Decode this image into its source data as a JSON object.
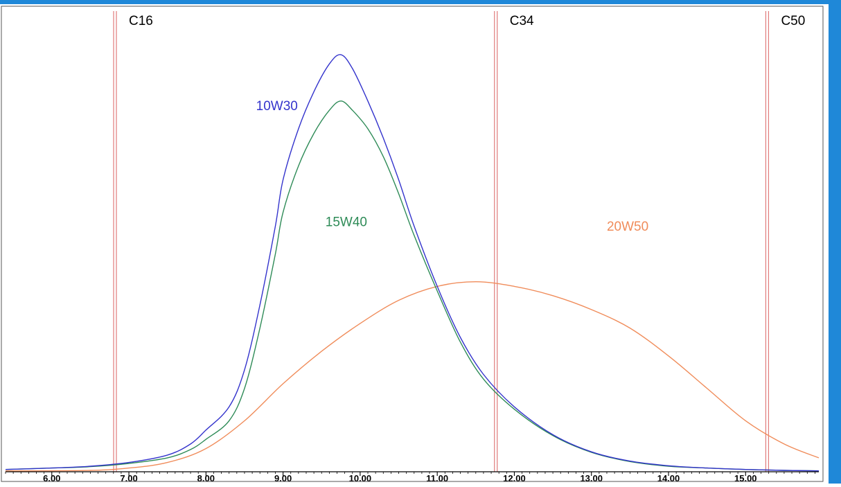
{
  "colors": {
    "frame": "#1f88d8",
    "reference": "#e07a7a",
    "series_10W30": "#3333cc",
    "series_15W40": "#2e8b57",
    "series_20W50": "#f08c5a",
    "axis_text": "#000000"
  },
  "chart_data": {
    "type": "line",
    "title": "",
    "xlabel": "",
    "ylabel": "",
    "xlim": [
      5.4,
      15.95
    ],
    "ylim": [
      0,
      100
    ],
    "x_ticks": [
      "6.00",
      "7.00",
      "8.00",
      "9.00",
      "10.00",
      "11.00",
      "12.00",
      "13.00",
      "14.00",
      "15.00"
    ],
    "grid": false,
    "legend": "none",
    "reference_markers": [
      {
        "label": "C16",
        "x": 6.82
      },
      {
        "label": "C34",
        "x": 11.76
      },
      {
        "label": "C50",
        "x": 15.28
      }
    ],
    "series": [
      {
        "name": "10W30",
        "x": [
          5.4,
          6.0,
          6.5,
          7.0,
          7.5,
          7.8,
          8.0,
          8.3,
          8.5,
          8.7,
          8.9,
          9.0,
          9.2,
          9.4,
          9.6,
          9.75,
          9.9,
          10.1,
          10.3,
          10.5,
          10.7,
          11.0,
          11.3,
          11.6,
          12.0,
          12.5,
          13.0,
          13.5,
          14.0,
          14.5,
          15.0,
          15.5,
          15.95
        ],
        "y": [
          0.5,
          0.8,
          1.2,
          2.0,
          3.6,
          6.0,
          9.0,
          14.0,
          22.0,
          36.0,
          53.0,
          63.0,
          74.0,
          82.0,
          88.0,
          90.0,
          87.0,
          80.0,
          72.0,
          63.0,
          53.0,
          40.0,
          29.0,
          21.0,
          14.0,
          8.0,
          4.3,
          2.3,
          1.3,
          0.8,
          0.5,
          0.3,
          0.2
        ]
      },
      {
        "name": "15W40",
        "x": [
          5.4,
          6.0,
          6.5,
          7.0,
          7.5,
          7.8,
          8.0,
          8.3,
          8.5,
          8.7,
          8.9,
          9.0,
          9.2,
          9.4,
          9.6,
          9.75,
          9.9,
          10.1,
          10.3,
          10.5,
          10.7,
          11.0,
          11.3,
          11.6,
          12.0,
          12.5,
          13.0,
          13.5,
          14.0,
          14.5,
          15.0,
          15.5,
          15.95
        ],
        "y": [
          0.5,
          0.8,
          1.1,
          1.8,
          3.0,
          4.8,
          7.0,
          11.0,
          18.0,
          31.0,
          47.0,
          56.0,
          66.0,
          73.0,
          78.0,
          80.0,
          78.0,
          74.0,
          68.0,
          60.0,
          51.0,
          39.0,
          28.0,
          20.0,
          13.5,
          7.8,
          4.2,
          2.2,
          1.2,
          0.8,
          0.5,
          0.3,
          0.2
        ]
      },
      {
        "name": "20W50",
        "x": [
          5.4,
          6.5,
          7.0,
          7.5,
          8.0,
          8.5,
          9.0,
          9.5,
          10.0,
          10.5,
          11.0,
          11.5,
          12.0,
          12.5,
          13.0,
          13.5,
          14.0,
          14.5,
          15.0,
          15.5,
          15.95
        ],
        "y": [
          0.2,
          0.3,
          0.8,
          2.0,
          5.0,
          11.0,
          19.0,
          26.0,
          32.0,
          37.0,
          40.0,
          41.0,
          40.0,
          38.0,
          35.0,
          31.0,
          25.0,
          18.0,
          11.0,
          6.0,
          3.0
        ]
      }
    ],
    "annotations": [
      {
        "text": "10W30",
        "series": "10W30",
        "x": 8.65,
        "y": 78
      },
      {
        "text": "15W40",
        "series": "15W40",
        "x": 9.55,
        "y": 53
      },
      {
        "text": "20W50",
        "series": "20W50",
        "x": 13.2,
        "y": 52
      }
    ]
  }
}
